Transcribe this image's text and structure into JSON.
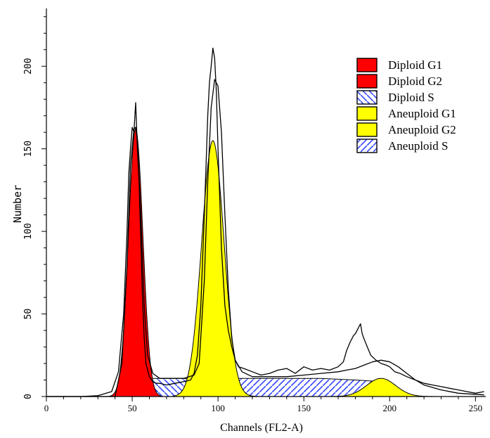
{
  "chart_data": {
    "type": "area",
    "xlabel": "Channels (FL2-A)",
    "ylabel": "Number",
    "xlim": [
      0,
      256
    ],
    "ylim": [
      0,
      235
    ],
    "x_ticks": [
      0,
      50,
      100,
      150,
      200,
      250
    ],
    "y_ticks": [
      0,
      50,
      100,
      150,
      200
    ],
    "legend_position": "top-right",
    "series": [
      {
        "name": "Diploid G1",
        "color": "#ff0000",
        "pattern": "solid",
        "center": 52,
        "sigma": 4.2,
        "peak": 162
      },
      {
        "name": "Diploid G2",
        "color": "#ff0000",
        "pattern": "solid",
        "center": 104,
        "sigma": 5.5,
        "peak": 20
      },
      {
        "name": "Diploid S",
        "color": "#0000ff",
        "pattern": "hatch-back",
        "x": [
          54,
          60,
          70,
          80,
          90,
          100
        ],
        "y": [
          10,
          11,
          11,
          11,
          10,
          10
        ]
      },
      {
        "name": "Aneuploid G1",
        "color": "#ffff00",
        "pattern": "solid",
        "center": 97,
        "sigma": 6.5,
        "peak": 155
      },
      {
        "name": "Aneuploid G2",
        "color": "#ffff00",
        "pattern": "solid",
        "center": 195,
        "sigma": 8.5,
        "peak": 11
      },
      {
        "name": "Aneuploid S",
        "color": "#0000ff",
        "pattern": "hatch-forward",
        "x": [
          100,
          110,
          120,
          140,
          160,
          180,
          195
        ],
        "y": [
          11,
          11,
          11,
          11,
          11,
          10,
          9
        ]
      }
    ],
    "histogram": {
      "x": [
        0,
        20,
        30,
        38,
        42,
        45,
        47,
        48,
        49,
        50,
        51,
        52,
        53,
        54,
        55,
        56,
        57,
        58,
        60,
        62,
        64,
        66,
        70,
        75,
        80,
        84,
        86,
        88,
        90,
        92,
        93,
        94,
        95,
        96,
        97,
        98,
        99,
        100,
        101,
        102,
        104,
        106,
        108,
        110,
        112,
        115,
        120,
        125,
        130,
        135,
        140,
        145,
        150,
        155,
        160,
        165,
        170,
        173,
        175,
        177,
        179,
        180,
        182,
        183,
        184,
        185,
        187,
        189,
        192,
        195,
        198,
        200,
        203,
        206,
        210,
        215,
        220,
        225,
        230,
        235,
        240,
        245,
        250,
        255
      ],
      "y": [
        0,
        0,
        0.5,
        3,
        15,
        50,
        100,
        135,
        150,
        163,
        160,
        178,
        150,
        130,
        95,
        60,
        35,
        20,
        12,
        9,
        8,
        8,
        7,
        8,
        9,
        10,
        14,
        25,
        55,
        110,
        140,
        170,
        190,
        200,
        211,
        205,
        185,
        150,
        120,
        90,
        55,
        40,
        30,
        22,
        18,
        17,
        15,
        13,
        14,
        16,
        17,
        14,
        18,
        16,
        17,
        16,
        18,
        21,
        28,
        33,
        37,
        38,
        42,
        44,
        38,
        35,
        30,
        25,
        22,
        20,
        19,
        18,
        15,
        14,
        12,
        10,
        8,
        7,
        6,
        5,
        4,
        3,
        2,
        3
      ]
    },
    "fit": {
      "x": [
        0,
        40,
        44,
        47,
        49,
        51,
        52,
        53,
        55,
        57,
        59,
        62,
        66,
        72,
        80,
        86,
        89,
        92,
        94,
        96,
        98,
        100,
        102,
        104,
        106,
        108,
        110,
        114,
        120,
        130,
        140,
        150,
        160,
        170,
        175,
        180,
        185,
        190,
        195,
        200,
        205,
        210,
        215,
        220,
        230,
        240,
        255
      ],
      "y": [
        0,
        0,
        20,
        80,
        140,
        162,
        163,
        155,
        110,
        55,
        25,
        14,
        11,
        11,
        11,
        13,
        20,
        70,
        130,
        175,
        192,
        188,
        160,
        110,
        65,
        35,
        22,
        15,
        12,
        12,
        12,
        13,
        14,
        15,
        16,
        17,
        19,
        21,
        22,
        21,
        18,
        14,
        10,
        7,
        4,
        2,
        1
      ]
    }
  }
}
